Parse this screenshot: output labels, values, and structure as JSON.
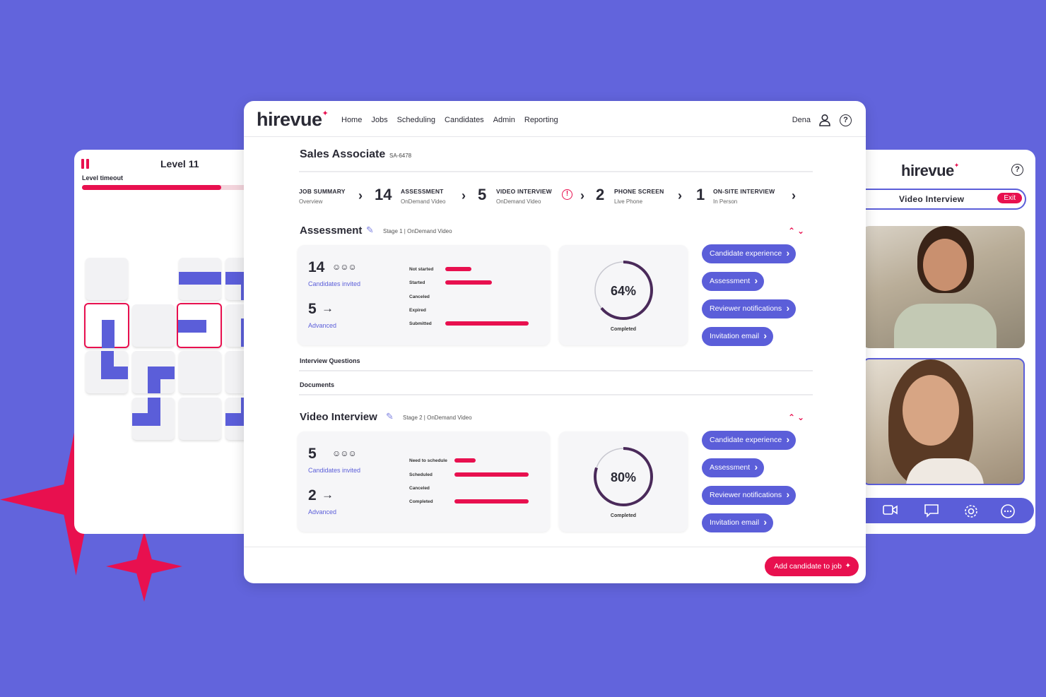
{
  "colors": {
    "background": "#6264dc",
    "accent": "#5b5ed9",
    "brand_red": "#e8104f"
  },
  "game": {
    "title": "Level 11",
    "timeout_label": "Level timeout",
    "timeout_progress": 0.82
  },
  "app": {
    "logo": "hirevue",
    "nav": [
      "Home",
      "Jobs",
      "Scheduling",
      "Candidates",
      "Admin",
      "Reporting"
    ],
    "user_name": "Dena"
  },
  "job": {
    "title": "Sales Associate",
    "code": "SA-6478"
  },
  "pipeline": [
    {
      "count": "",
      "name": "JOB SUMMARY",
      "sub": "Overview"
    },
    {
      "count": "14",
      "name": "ASSESSMENT",
      "sub": "OnDemand Video"
    },
    {
      "count": "5",
      "name": "VIDEO INTERVIEW",
      "sub": "OnDemand Video",
      "alert": true
    },
    {
      "count": "2",
      "name": "PHONE SCREEN",
      "sub": "Live Phone"
    },
    {
      "count": "1",
      "name": "ON-SITE INTERVIEW",
      "sub": "In Person"
    }
  ],
  "assessment": {
    "title": "Assessment",
    "stage": "Stage 1 | OnDemand Video",
    "invited_count": "14",
    "invited_label": "Candidates invited",
    "advanced_count": "5",
    "advanced_label": "Advanced",
    "stats": [
      {
        "label": "Not started",
        "value": 0.31
      },
      {
        "label": "Started",
        "value": 0.56
      },
      {
        "label": "Canceled",
        "value": 0
      },
      {
        "label": "Expired",
        "value": 0
      },
      {
        "label": "Submitted",
        "value": 1.0
      }
    ],
    "completion_label": "64%",
    "completion": 64,
    "completion_caption": "Completed",
    "buttons": [
      "Candidate experience",
      "Assessment",
      "Reviewer notifications",
      "Invitation email"
    ]
  },
  "rows": {
    "questions": "Interview Questions",
    "documents": "Documents"
  },
  "video_interview": {
    "title": "Video Interview",
    "stage": "Stage 2 | OnDemand Video",
    "invited_count": "5",
    "invited_label": "Candidates invited",
    "advanced_count": "2",
    "advanced_label": "Advanced",
    "stats": [
      {
        "label": "Need to schedule",
        "value": 0.29
      },
      {
        "label": "Scheduled",
        "value": 1.0
      },
      {
        "label": "Canceled",
        "value": 0
      },
      {
        "label": "Completed",
        "value": 1.0
      }
    ],
    "completion_label": "80%",
    "completion": 80,
    "completion_caption": "Completed",
    "buttons": [
      "Candidate experience",
      "Assessment",
      "Reviewer notifications",
      "Invitation email"
    ]
  },
  "footer": {
    "add_button": "Add candidate to job"
  },
  "video_panel": {
    "logo": "hirevue",
    "title": "Video Interview",
    "exit_label": "Exit",
    "toolbar_icons": [
      "camera-icon",
      "chat-icon",
      "settings-icon",
      "more-icon"
    ]
  }
}
